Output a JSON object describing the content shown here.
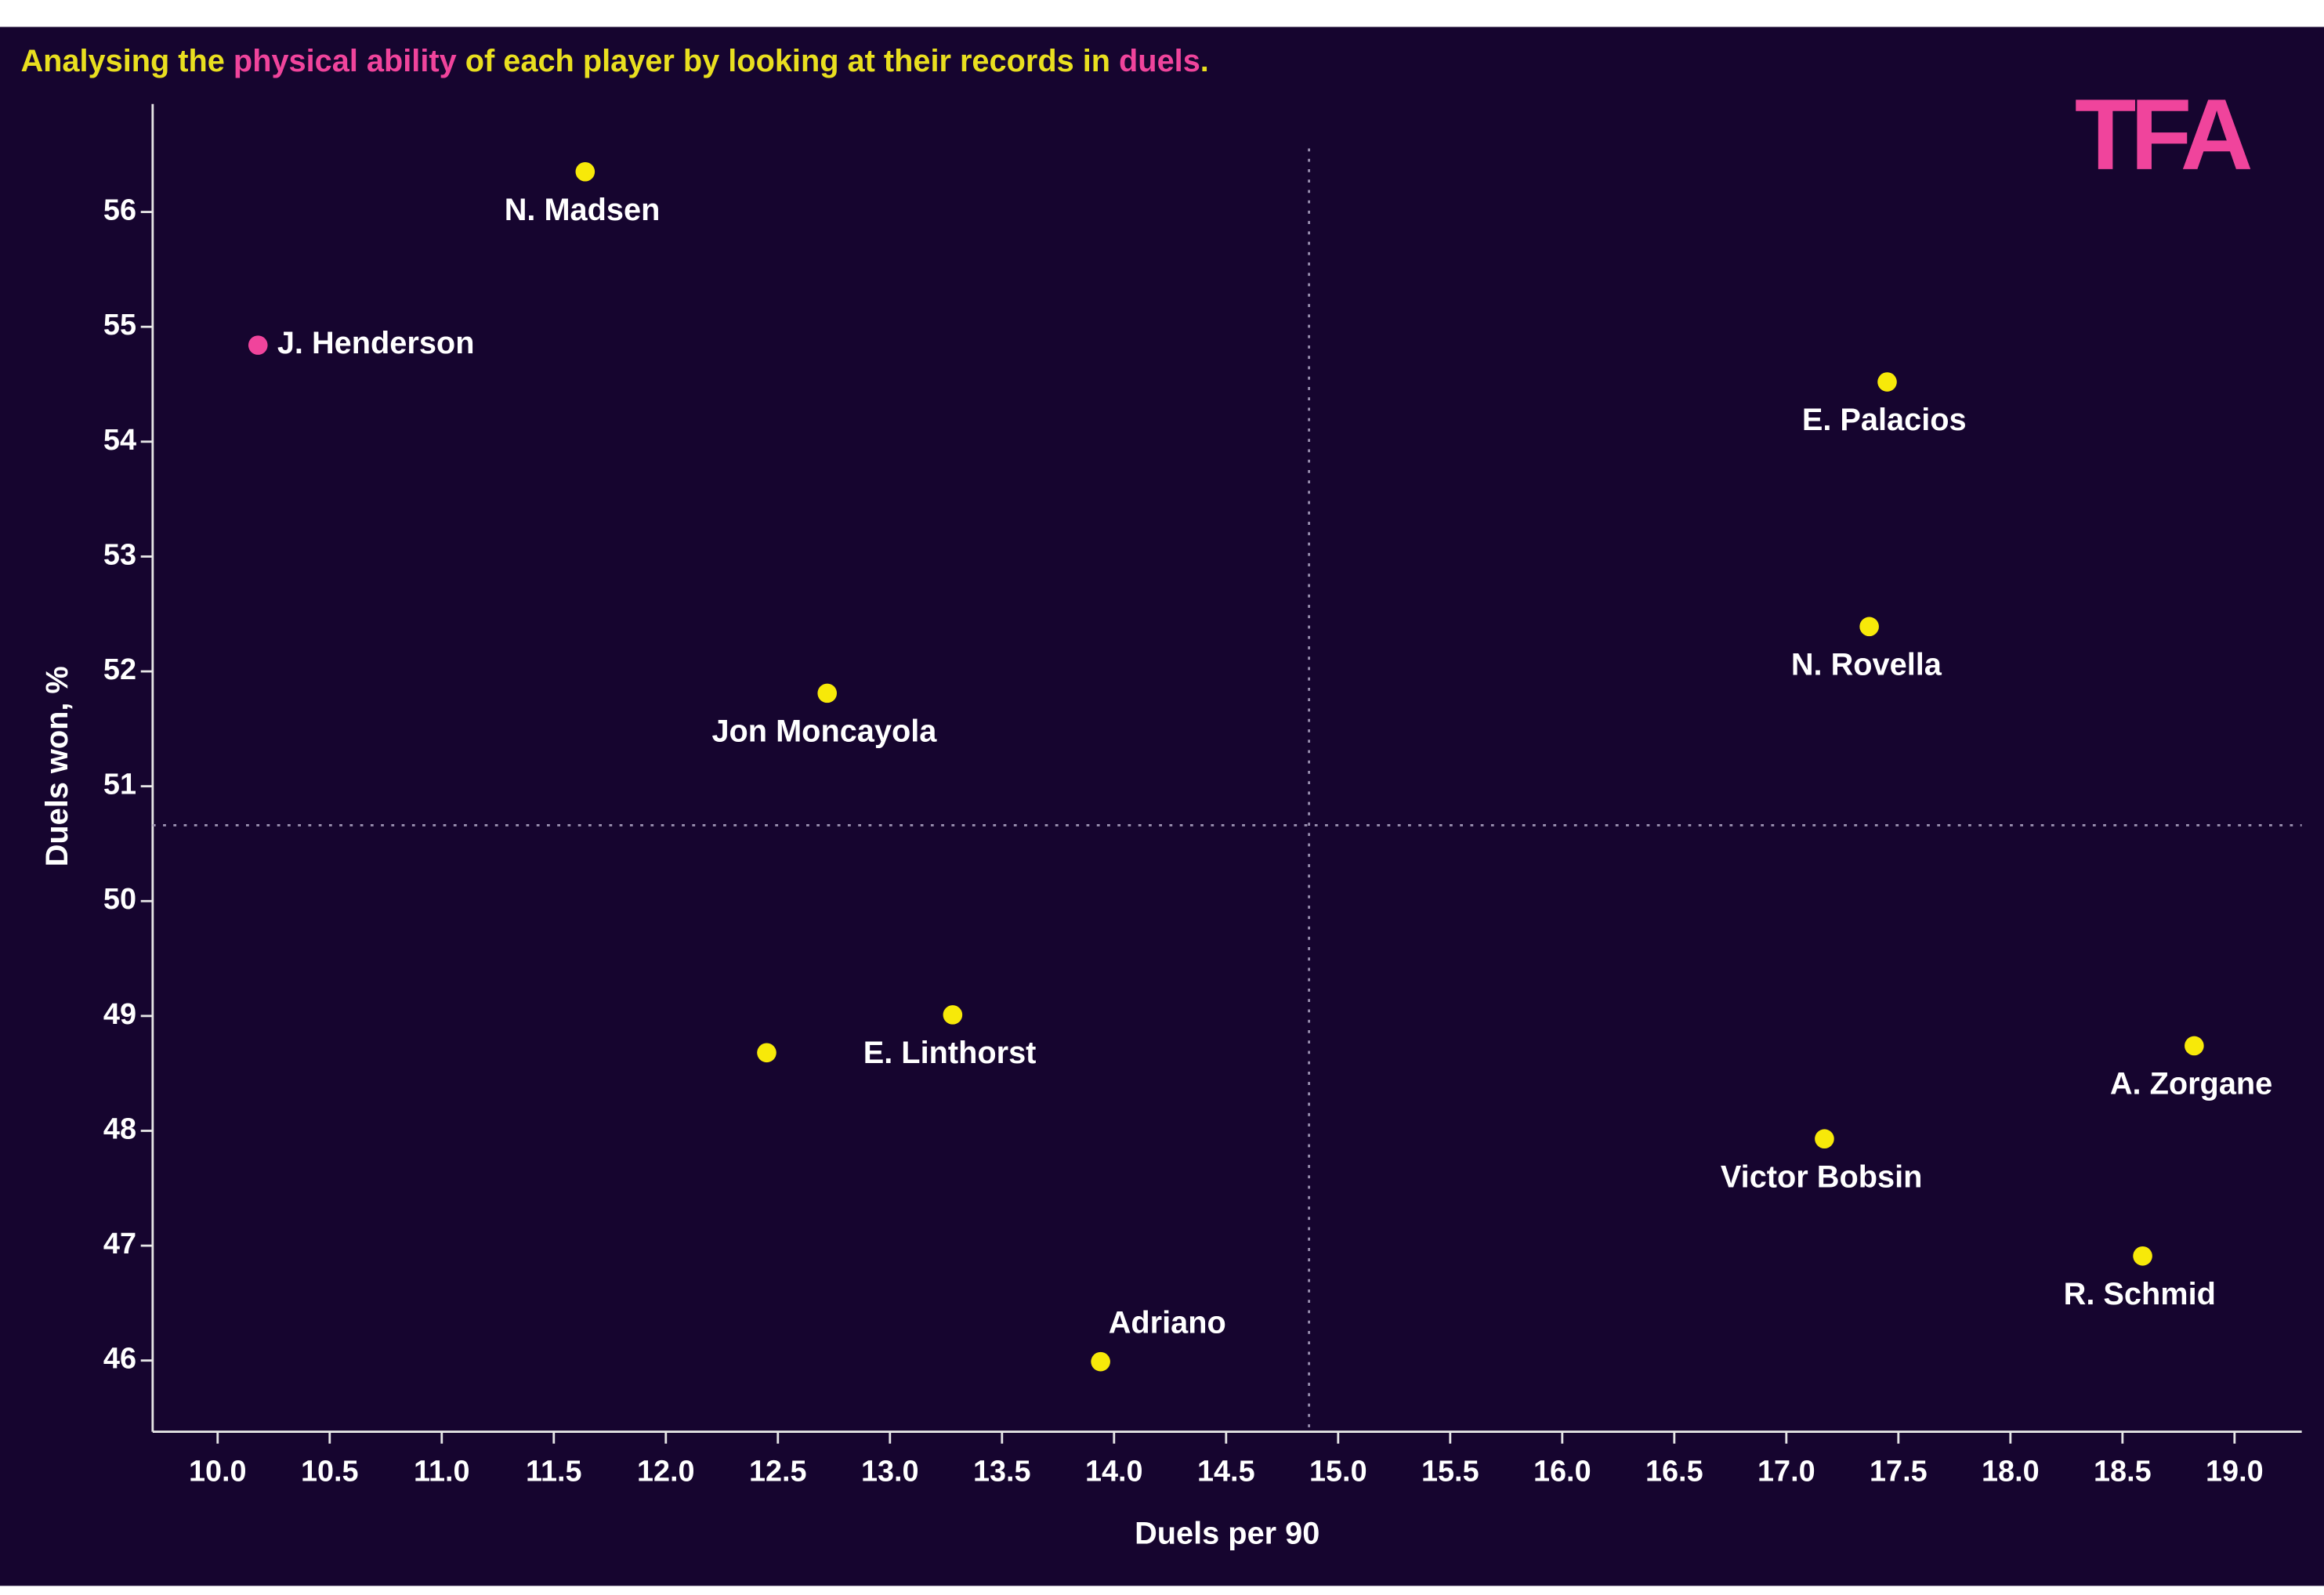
{
  "chart_data": {
    "type": "scatter",
    "title_parts": [
      {
        "text": "Analysing the ",
        "color": "#e9df1f"
      },
      {
        "text": "physical ability",
        "color": "#f0449c"
      },
      {
        "text": " of each player by looking at their records in ",
        "color": "#e9df1f"
      },
      {
        "text": "duels",
        "color": "#f0449c"
      },
      {
        "text": ".",
        "color": "#e9df1f"
      }
    ],
    "logo": "TFA",
    "logo_color": "#f0449c",
    "x_label": "Duels per 90",
    "y_label": "Duels won, %",
    "x": [
      11.64,
      10.18,
      17.45,
      17.37,
      12.72,
      13.28,
      12.45,
      18.82,
      17.17,
      18.59,
      13.94
    ],
    "y": [
      56.35,
      54.84,
      54.52,
      52.39,
      51.81,
      49.01,
      48.68,
      48.74,
      47.93,
      46.91,
      45.99
    ],
    "point_labels": [
      "N. Madsen",
      "J. Henderson",
      "E. Palacios",
      "N. Rovella",
      "Jon Moncayola",
      "E. Linthorst",
      null,
      "A. Zorgane",
      "Victor Bobsin",
      "R. Schmid",
      "Adriano"
    ],
    "point_colors": [
      "#f7e909",
      "#f0449c",
      "#f7e909",
      "#f7e909",
      "#f7e909",
      "#f7e909",
      "#f7e909",
      "#f7e909",
      "#f7e909",
      "#f7e909",
      "#f7e909"
    ],
    "reference_lines": {
      "x": 14.87,
      "y": 50.66
    },
    "xlim": [
      9.71,
      19.3
    ],
    "ylim": [
      45.38,
      56.94
    ],
    "xticks": [
      {
        "value": 10,
        "label": "10.0"
      },
      {
        "value": 10.5,
        "label": "10.5"
      },
      {
        "value": 11,
        "label": "11.0"
      },
      {
        "value": 11.5,
        "label": "11.5"
      },
      {
        "value": 12,
        "label": "12.0"
      },
      {
        "value": 12.5,
        "label": "12.5"
      },
      {
        "value": 13,
        "label": "13.0"
      },
      {
        "value": 13.5,
        "label": "13.5"
      },
      {
        "value": 14,
        "label": "14.0"
      },
      {
        "value": 14.5,
        "label": "14.5"
      },
      {
        "value": 15,
        "label": "15.0"
      },
      {
        "value": 15.5,
        "label": "15.5"
      },
      {
        "value": 16,
        "label": "16.0"
      },
      {
        "value": 16.5,
        "label": "16.5"
      },
      {
        "value": 17,
        "label": "17.0"
      },
      {
        "value": 17.5,
        "label": "17.5"
      },
      {
        "value": 18,
        "label": "18.0"
      },
      {
        "value": 18.5,
        "label": "18.5"
      },
      {
        "value": 19,
        "label": "19.0"
      }
    ],
    "yticks": [
      46,
      47,
      48,
      49,
      50,
      51,
      52,
      53,
      54,
      55,
      56
    ]
  }
}
